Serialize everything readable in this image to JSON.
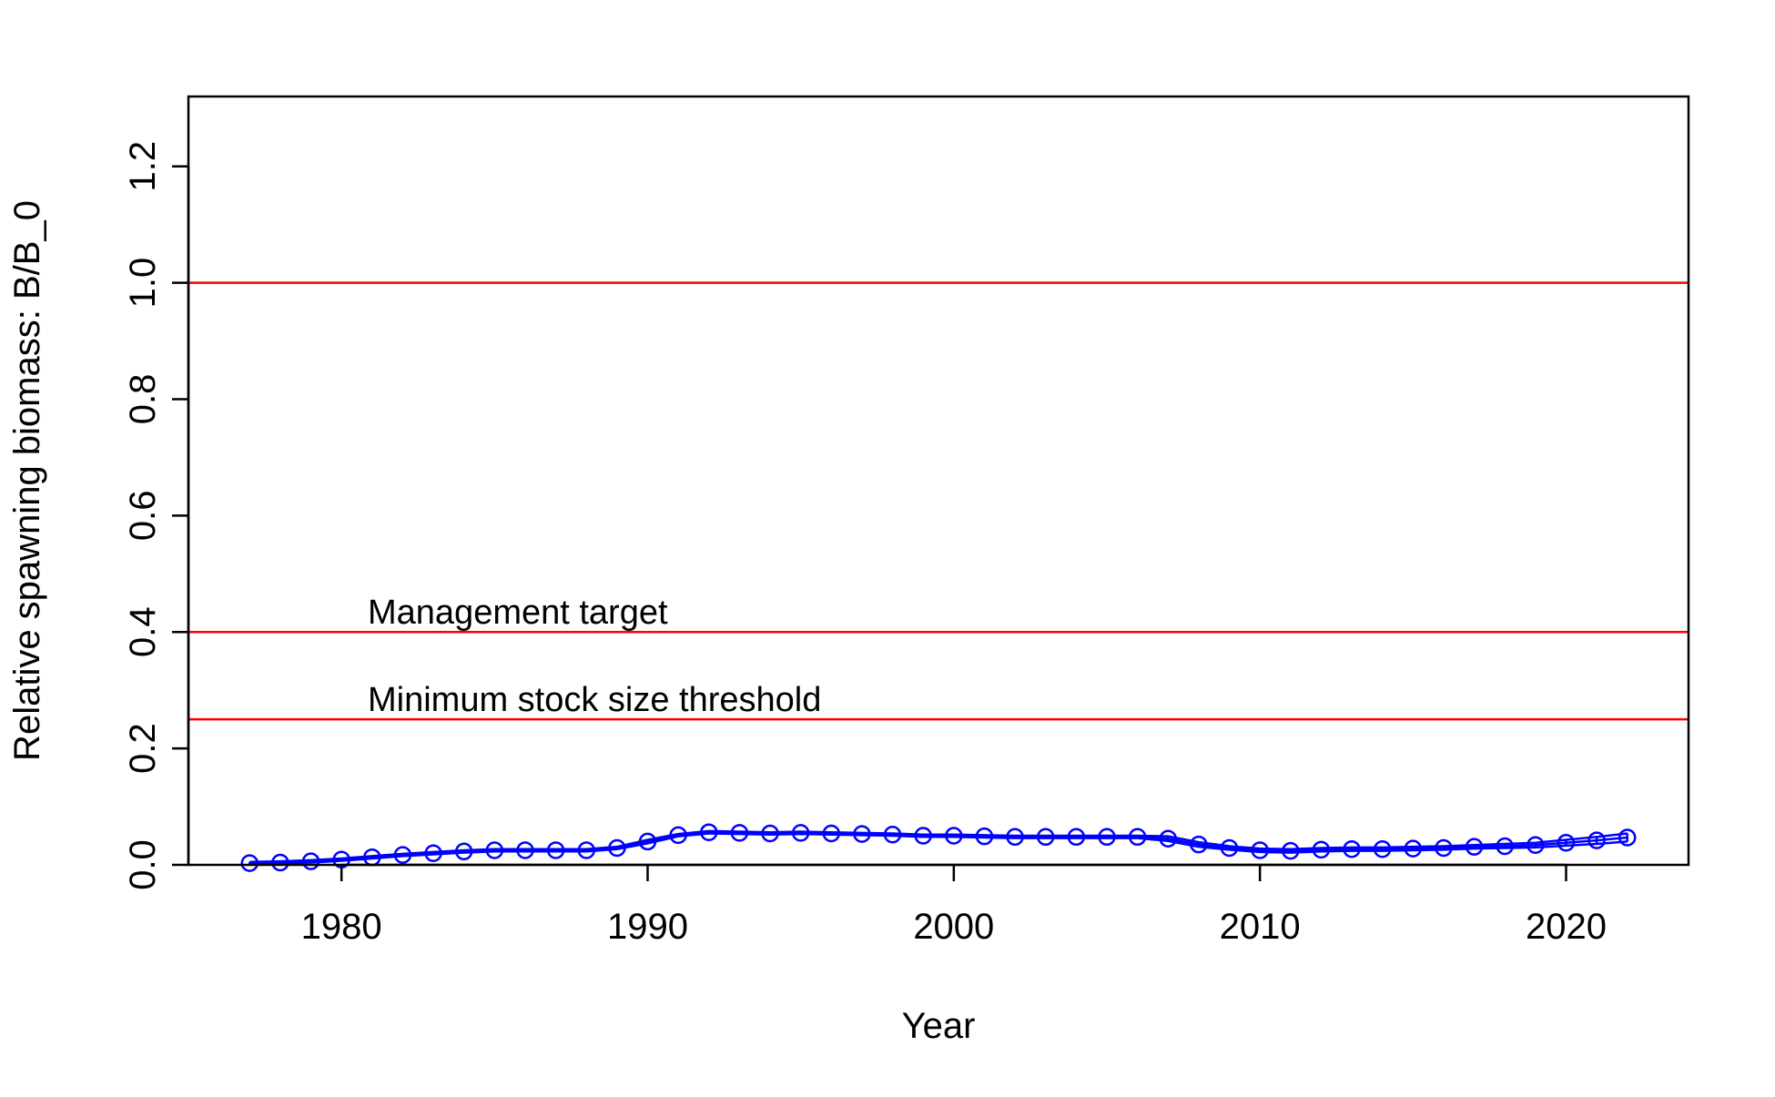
{
  "chart_data": {
    "type": "line",
    "title": "",
    "xlabel": "Year",
    "ylabel": "Relative spawning biomass: B/B_0",
    "xlim": [
      1975,
      2024
    ],
    "ylim": [
      0,
      1.32
    ],
    "xticks": [
      1980,
      1990,
      2000,
      2010,
      2020
    ],
    "yticks": [
      0.0,
      0.2,
      0.4,
      0.6,
      0.8,
      1.0,
      1.2
    ],
    "ytick_labels": [
      "0.0",
      "0.2",
      "0.4",
      "0.6",
      "0.8",
      "1.0",
      "1.2"
    ],
    "grid": false,
    "series_color": "#0000ff",
    "reference_color": "#ff0000",
    "reference_lines": [
      {
        "y": 1.0,
        "label": ""
      },
      {
        "y": 0.4,
        "label": "Management target"
      },
      {
        "y": 0.25,
        "label": "Minimum stock size threshold"
      }
    ],
    "x": [
      1977,
      1978,
      1979,
      1980,
      1981,
      1982,
      1983,
      1984,
      1985,
      1986,
      1987,
      1988,
      1989,
      1990,
      1991,
      1992,
      1993,
      1994,
      1995,
      1996,
      1997,
      1998,
      1999,
      2000,
      2001,
      2002,
      2003,
      2004,
      2005,
      2006,
      2007,
      2008,
      2009,
      2010,
      2011,
      2012,
      2013,
      2014,
      2015,
      2016,
      2017,
      2018,
      2019,
      2020,
      2021,
      2022
    ],
    "series": [
      {
        "values": [
          0.003,
          0.004,
          0.006,
          0.009,
          0.013,
          0.017,
          0.02,
          0.023,
          0.025,
          0.025,
          0.025,
          0.025,
          0.029,
          0.04,
          0.051,
          0.056,
          0.055,
          0.054,
          0.055,
          0.054,
          0.053,
          0.052,
          0.05,
          0.05,
          0.049,
          0.048,
          0.048,
          0.048,
          0.048,
          0.048,
          0.045,
          0.035,
          0.029,
          0.025,
          0.024,
          0.026,
          0.027,
          0.027,
          0.028,
          0.029,
          0.031,
          0.032,
          0.034,
          0.038,
          0.042,
          0.047
        ],
        "lower": [
          0.001,
          0.002,
          0.004,
          0.007,
          0.011,
          0.015,
          0.018,
          0.021,
          0.023,
          0.023,
          0.023,
          0.023,
          0.027,
          0.037,
          0.049,
          0.054,
          0.053,
          0.052,
          0.053,
          0.052,
          0.051,
          0.05,
          0.048,
          0.048,
          0.047,
          0.046,
          0.046,
          0.046,
          0.046,
          0.046,
          0.041,
          0.031,
          0.026,
          0.022,
          0.021,
          0.023,
          0.024,
          0.024,
          0.025,
          0.026,
          0.028,
          0.029,
          0.03,
          0.033,
          0.036,
          0.04
        ],
        "upper": [
          0.005,
          0.006,
          0.008,
          0.011,
          0.015,
          0.019,
          0.022,
          0.025,
          0.027,
          0.027,
          0.027,
          0.027,
          0.031,
          0.043,
          0.053,
          0.058,
          0.057,
          0.056,
          0.057,
          0.056,
          0.055,
          0.054,
          0.052,
          0.052,
          0.051,
          0.05,
          0.05,
          0.05,
          0.05,
          0.05,
          0.049,
          0.039,
          0.032,
          0.028,
          0.027,
          0.029,
          0.03,
          0.03,
          0.031,
          0.032,
          0.034,
          0.036,
          0.038,
          0.043,
          0.048,
          0.054
        ]
      }
    ]
  }
}
